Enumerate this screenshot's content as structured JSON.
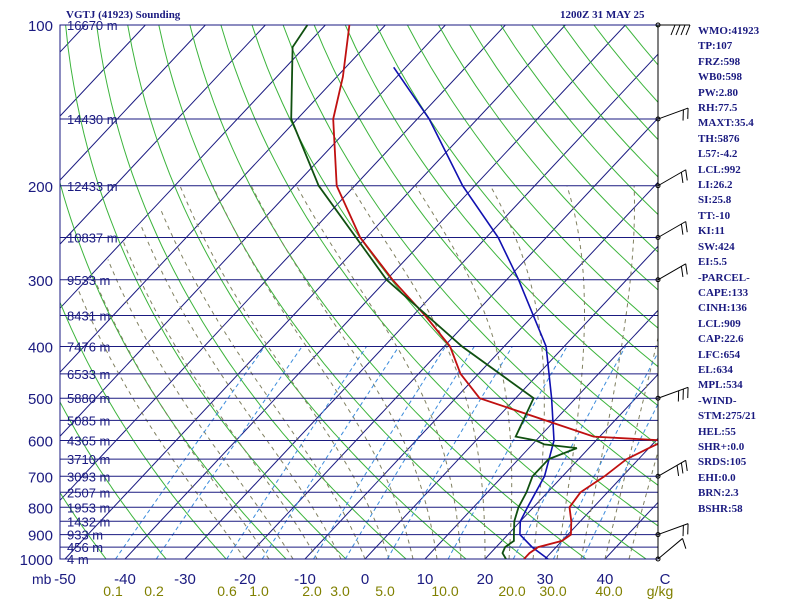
{
  "header": {
    "station": "VGTJ (41923) Sounding",
    "time": "1200Z 31 MAY 25"
  },
  "indices": [
    "WMO:41923",
    "TP:107",
    "FRZ:598",
    "WB0:598",
    "PW:2.80",
    "RH:77.5",
    "MAXT:35.4",
    "TH:5876",
    "L57:-4.2",
    "LCL:992",
    "LI:26.2",
    "SI:25.8",
    "TT:-10",
    "KI:11",
    "SW:424",
    "EI:5.5",
    "-PARCEL-",
    "CAPE:133",
    "CINH:136",
    "LCL:909",
    "CAP:22.6",
    "LFC:654",
    "EL:634",
    "MPL:534",
    "-WIND-",
    "STM:275/21",
    "HEL:55",
    "SHR+:0.0",
    "SRDS:105",
    "EHI:0.0",
    "BRN:2.3",
    "BSHR:58"
  ],
  "colors": {
    "axis": "#1a1a80",
    "isobar": "#1a1a80",
    "isotherm": "#1a1a80",
    "dry_adiabat": "#3cb43c",
    "moist_adiabat": "#808060",
    "mixing_ratio": "#3c8cdc",
    "temperature": "#c01010",
    "dewpoint": "#105010",
    "parcel": "#1010b0",
    "tick_label": "#1a1a80",
    "mixing_label": "#808000"
  },
  "chart_data": {
    "type": "skew-t",
    "pressure_labels": [
      "100",
      "200",
      "300",
      "400",
      "500",
      "600",
      "700",
      "800",
      "900",
      "1000"
    ],
    "pressure_unit": "mb",
    "temperature_labels": [
      "-50",
      "-40",
      "-30",
      "-20",
      "-10",
      "0",
      "10",
      "20",
      "30",
      "40",
      "C"
    ],
    "mixing_ratio_labels": [
      "0.1",
      "0.2",
      "0.6",
      "1.0",
      "2.0",
      "3.0",
      "5.0",
      "10.0",
      "20.0",
      "30.0",
      "40.0",
      "g/kg"
    ],
    "height_labels": [
      {
        "p": 100,
        "label": "16670 m"
      },
      {
        "p": 150,
        "label": "14430 m"
      },
      {
        "p": 200,
        "label": "12433 m"
      },
      {
        "p": 250,
        "label": "10837 m"
      },
      {
        "p": 300,
        "label": "9533 m"
      },
      {
        "p": 350,
        "label": "8431 m"
      },
      {
        "p": 400,
        "label": "7476 m"
      },
      {
        "p": 450,
        "label": "6533 m"
      },
      {
        "p": 500,
        "label": "5880 m"
      },
      {
        "p": 550,
        "label": "5085 m"
      },
      {
        "p": 600,
        "label": "4365 m"
      },
      {
        "p": 650,
        "label": "3710 m"
      },
      {
        "p": 700,
        "label": "3093 m"
      },
      {
        "p": 750,
        "label": "2507 m"
      },
      {
        "p": 800,
        "label": "1953 m"
      },
      {
        "p": 850,
        "label": "1432 m"
      },
      {
        "p": 900,
        "label": "933 m"
      },
      {
        "p": 950,
        "label": "456 m"
      },
      {
        "p": 1000,
        "label": "4 m"
      }
    ],
    "temperature": [
      {
        "p": 1000,
        "t": 26.5
      },
      {
        "p": 975,
        "t": 26.5
      },
      {
        "p": 950,
        "t": 27
      },
      {
        "p": 925,
        "t": 30
      },
      {
        "p": 900,
        "t": 30.5
      },
      {
        "p": 850,
        "t": 28.5
      },
      {
        "p": 800,
        "t": 26
      },
      {
        "p": 750,
        "t": 25.5
      },
      {
        "p": 700,
        "t": 27
      },
      {
        "p": 650,
        "t": 28
      },
      {
        "p": 620,
        "t": 30
      },
      {
        "p": 600,
        "t": 31.5
      },
      {
        "p": 590,
        "t": 19
      },
      {
        "p": 500,
        "t": -6
      },
      {
        "p": 450,
        "t": -13
      },
      {
        "p": 400,
        "t": -19
      },
      {
        "p": 350,
        "t": -28
      },
      {
        "p": 300,
        "t": -39
      },
      {
        "p": 250,
        "t": -51
      },
      {
        "p": 200,
        "t": -63
      },
      {
        "p": 150,
        "t": -74
      },
      {
        "p": 125,
        "t": -79
      },
      {
        "p": 100,
        "t": -86
      }
    ],
    "dewpoint": [
      {
        "p": 1000,
        "t": 23.5
      },
      {
        "p": 975,
        "t": 22
      },
      {
        "p": 950,
        "t": 21.5
      },
      {
        "p": 925,
        "t": 22
      },
      {
        "p": 900,
        "t": 21
      },
      {
        "p": 850,
        "t": 19
      },
      {
        "p": 800,
        "t": 17.5
      },
      {
        "p": 750,
        "t": 16.5
      },
      {
        "p": 700,
        "t": 15
      },
      {
        "p": 650,
        "t": 15
      },
      {
        "p": 620,
        "t": 18
      },
      {
        "p": 610,
        "t": 12
      },
      {
        "p": 600,
        "t": 10
      },
      {
        "p": 590,
        "t": 6
      },
      {
        "p": 500,
        "t": 3
      },
      {
        "p": 400,
        "t": -17
      },
      {
        "p": 300,
        "t": -40
      },
      {
        "p": 200,
        "t": -66
      },
      {
        "p": 150,
        "t": -81
      },
      {
        "p": 110,
        "t": -92
      },
      {
        "p": 100,
        "t": -93
      }
    ],
    "parcel": [
      {
        "p": 1000,
        "t": 30.5
      },
      {
        "p": 950,
        "t": 26
      },
      {
        "p": 900,
        "t": 22
      },
      {
        "p": 850,
        "t": 20
      },
      {
        "p": 800,
        "t": 19
      },
      {
        "p": 700,
        "t": 17
      },
      {
        "p": 600,
        "t": 13
      },
      {
        "p": 500,
        "t": 6
      },
      {
        "p": 400,
        "t": -3
      },
      {
        "p": 300,
        "t": -18
      },
      {
        "p": 250,
        "t": -28
      },
      {
        "p": 200,
        "t": -42
      },
      {
        "p": 150,
        "t": -58
      },
      {
        "p": 120,
        "t": -72
      }
    ],
    "wind_barbs": [
      {
        "p": 100,
        "dir": 270,
        "spd": 40
      },
      {
        "p": 150,
        "dir": 250,
        "spd": 15
      },
      {
        "p": 200,
        "dir": 240,
        "spd": 20
      },
      {
        "p": 250,
        "dir": 240,
        "spd": 20
      },
      {
        "p": 300,
        "dir": 240,
        "spd": 20
      },
      {
        "p": 500,
        "dir": 250,
        "spd": 30
      },
      {
        "p": 700,
        "dir": 240,
        "spd": 25
      },
      {
        "p": 900,
        "dir": 250,
        "spd": 20
      },
      {
        "p": 1000,
        "dir": 230,
        "spd": 10
      }
    ],
    "grid": true
  }
}
